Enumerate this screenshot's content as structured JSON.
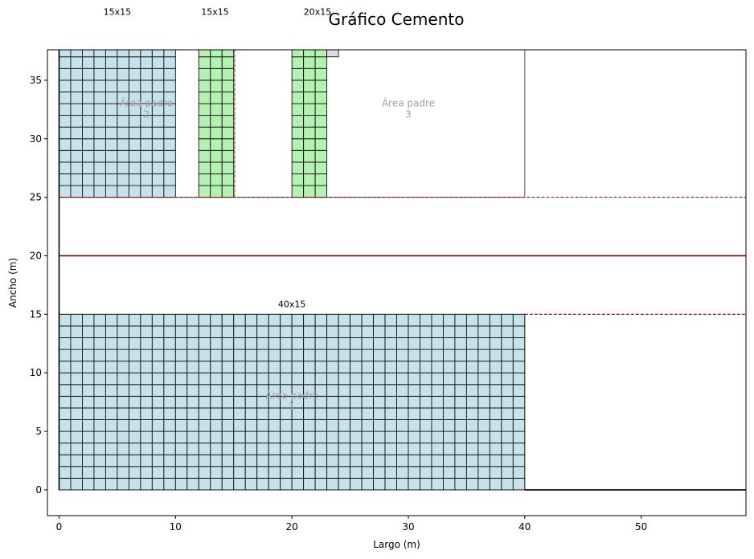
{
  "chart_data": {
    "type": "rectangle-layout",
    "title": "Gráfico Cemento",
    "xlabel": "Largo (m)",
    "ylabel": "Ancho (m)",
    "xlim": [
      -1,
      59
    ],
    "ylim": [
      -2.2,
      37.6
    ],
    "xticks": [
      0,
      10,
      20,
      30,
      40,
      50
    ],
    "yticks": [
      0,
      5,
      10,
      15,
      20,
      25,
      30,
      35
    ],
    "grid": false,
    "parent_areas": [
      {
        "id": "area-1",
        "label": "Área padre\n1",
        "x": 0,
        "y": 0,
        "w": 40,
        "h": 15,
        "label_x": 20,
        "label_y": 7.5
      },
      {
        "id": "area-2",
        "label": "Área padre\n2",
        "x": 0,
        "y": 25,
        "w": 15,
        "h": 15,
        "label_x": 7.5,
        "label_y": 32.5
      },
      {
        "id": "area-3",
        "label": "Área padre\n3",
        "x": 15,
        "y": 25,
        "w": 25,
        "h": 15,
        "label_x": 30,
        "label_y": 32.5
      }
    ],
    "cell_blocks": [
      {
        "x": 0,
        "y": 0,
        "w": 40,
        "h": 15,
        "cell": 1,
        "color": "#c6e3ec"
      },
      {
        "x": 0,
        "y": 25,
        "w": 10,
        "h": 15,
        "cell": 1,
        "color": "#c6e3ec"
      },
      {
        "x": 12,
        "y": 25,
        "w": 3,
        "h": 15,
        "cell": 1,
        "color": "#b3f2b0"
      },
      {
        "x": 20,
        "y": 25,
        "w": 3,
        "h": 15,
        "cell": 1,
        "color": "#b3f2b0"
      },
      {
        "x": 23,
        "y": 37,
        "w": 1,
        "h": 1,
        "cell": 1,
        "color": "#dcdcdc"
      }
    ],
    "rect_labels": [
      {
        "text": "40x15",
        "x": 20,
        "y": 15.6
      },
      {
        "text": "15x15",
        "x": 5,
        "y": 40.6
      },
      {
        "text": "15x15",
        "x": 13.4,
        "y": 40.6
      },
      {
        "text": "20x15",
        "x": 22.2,
        "y": 40.6
      }
    ],
    "horizontal_lines": [
      {
        "y": 0,
        "x0": 40,
        "x1": 59,
        "style": "solid",
        "color": "#000000"
      },
      {
        "y": 15,
        "x0": 40,
        "x1": 59,
        "style": "dashed",
        "color": "#8b0000"
      },
      {
        "y": 20,
        "x0": 0,
        "x1": 59,
        "style": "solid",
        "color": "#8b0000"
      },
      {
        "y": 25,
        "x0": 0,
        "x1": 59,
        "style": "dashed",
        "color": "#8b0000"
      }
    ],
    "vertical_lines": [
      {
        "x": 0,
        "y0": 0,
        "y1": 37.6,
        "style": "solid",
        "color": "#000000"
      },
      {
        "x": 15.1,
        "y0": 25,
        "y1": 37.6,
        "style": "dashed",
        "color": "#c080a0"
      },
      {
        "x": 40,
        "y0": 25,
        "y1": 37.6,
        "style": "dashed",
        "color": "#808080"
      }
    ]
  }
}
